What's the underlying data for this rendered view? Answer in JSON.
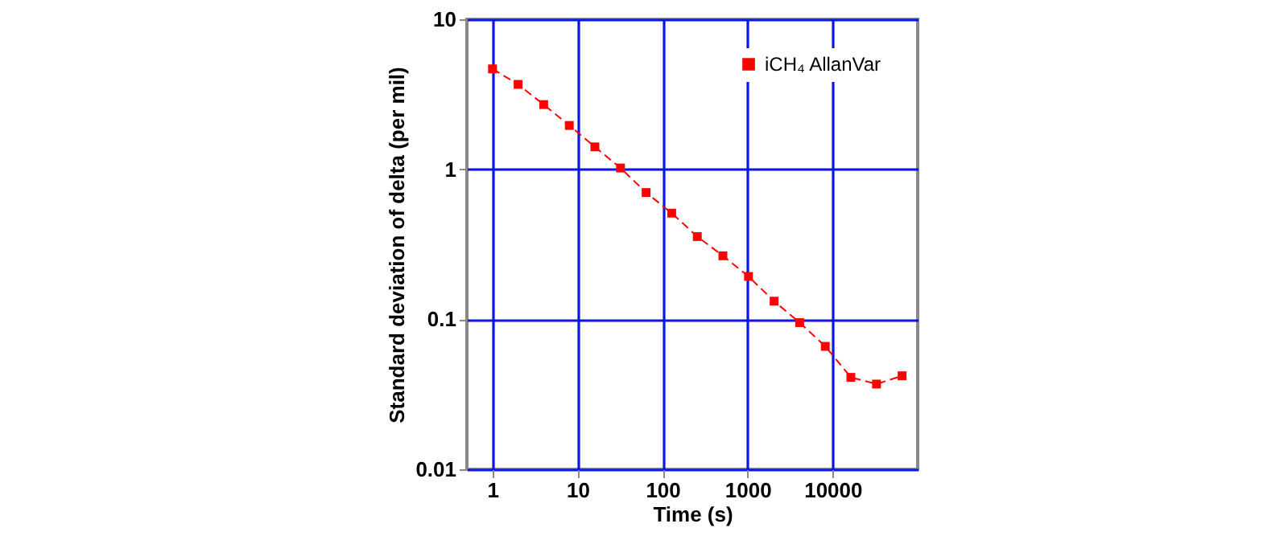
{
  "chart_data": {
    "type": "line",
    "xlabel": "Time (s)",
    "ylabel": "Standard deviation of delta (per mil)",
    "x": [
      1,
      2,
      4,
      8,
      16,
      32,
      64,
      128,
      256,
      512,
      1024,
      2048,
      4096,
      8192,
      16384,
      32768,
      65536
    ],
    "series": [
      {
        "name": "iCH₄ AllanVar",
        "color": "#ff0000",
        "values": [
          4.67,
          3.68,
          2.7,
          1.96,
          1.41,
          1.02,
          0.7,
          0.51,
          0.356,
          0.265,
          0.193,
          0.132,
          0.095,
          0.066,
          0.041,
          0.037,
          0.042
        ]
      }
    ],
    "log": "xy",
    "xlim": [
      0.5,
      100000
    ],
    "ylim": [
      0.01,
      10
    ],
    "xticks": [
      1,
      10,
      100,
      1000,
      10000
    ],
    "yticks": [
      0.01,
      0.1,
      1,
      10
    ],
    "grid": true,
    "legend": "top right",
    "marker": "square",
    "line_style": "dashed"
  }
}
